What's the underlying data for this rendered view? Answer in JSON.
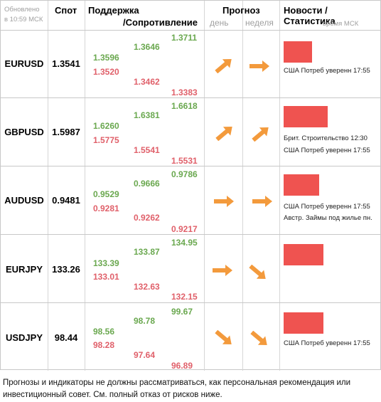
{
  "header": {
    "updated": "Обновлено",
    "updated_time": "в 10:59 МСК",
    "spot": "Спот",
    "support": "Поддержка",
    "resistance": "/Сопротивление",
    "forecast": "Прогноз",
    "day": "день",
    "week": "неделя",
    "news": "Новости / Статистика",
    "news_sub": "время МСК"
  },
  "colors": {
    "bar": "#ef5350",
    "arrow": "#f39a3c",
    "support": "#e0606a",
    "resistance": "#6aa84f"
  },
  "rows": [
    {
      "pair": "EURUSD",
      "spot": "1.3541",
      "c1": [
        "1.3596",
        "1.3520"
      ],
      "c2": [
        "1.3646",
        "1.3462"
      ],
      "c3": [
        "1.3711",
        "1.3383"
      ],
      "day_arrow": "arrow-up-right-icon",
      "week_arrow": "arrow-right-icon",
      "news": [
        "США Потреб уверенн 17:55"
      ]
    },
    {
      "pair": "GBPUSD",
      "spot": "1.5987",
      "c1": [
        "1.6260",
        "1.5775"
      ],
      "c2": [
        "1.6381",
        "1.5541"
      ],
      "c3": [
        "1.6618",
        "1.5531"
      ],
      "day_arrow": "arrow-up-right-icon",
      "week_arrow": "arrow-up-right-icon",
      "news": [
        "Брит. Строительство 12:30",
        "США Потреб уверенн 17:55"
      ]
    },
    {
      "pair": "AUDUSD",
      "spot": "0.9481",
      "c1": [
        "0.9529",
        "0.9281"
      ],
      "c2": [
        "0.9666",
        "0.9262"
      ],
      "c3": [
        "0.9786",
        "0.9217"
      ],
      "day_arrow": "arrow-right-icon",
      "week_arrow": "arrow-right-icon",
      "news": [
        "США Потреб уверенн 17:55",
        "Австр. Займы под жилье пн."
      ]
    },
    {
      "pair": "EURJPY",
      "spot": "133.26",
      "c1": [
        "133.39",
        "133.01"
      ],
      "c2": [
        "133.87",
        "132.63"
      ],
      "c3": [
        "134.95",
        "132.15"
      ],
      "day_arrow": "arrow-right-icon",
      "week_arrow": "arrow-down-right-icon",
      "news": []
    },
    {
      "pair": "USDJPY",
      "spot": "98.44",
      "c1": [
        "98.56",
        "98.28"
      ],
      "c2": [
        "98.78",
        "97.64"
      ],
      "c3": [
        "99.67",
        "96.89"
      ],
      "day_arrow": "arrow-down-right-icon",
      "week_arrow": "arrow-down-right-icon",
      "news": [
        "США Потреб уверенн 17:55"
      ]
    }
  ],
  "footer": "Прогнозы и индикаторы не должны рассматриваться, как персональная рекомендация или инвестиционный совет. См. полный отказ от рисков ниже."
}
